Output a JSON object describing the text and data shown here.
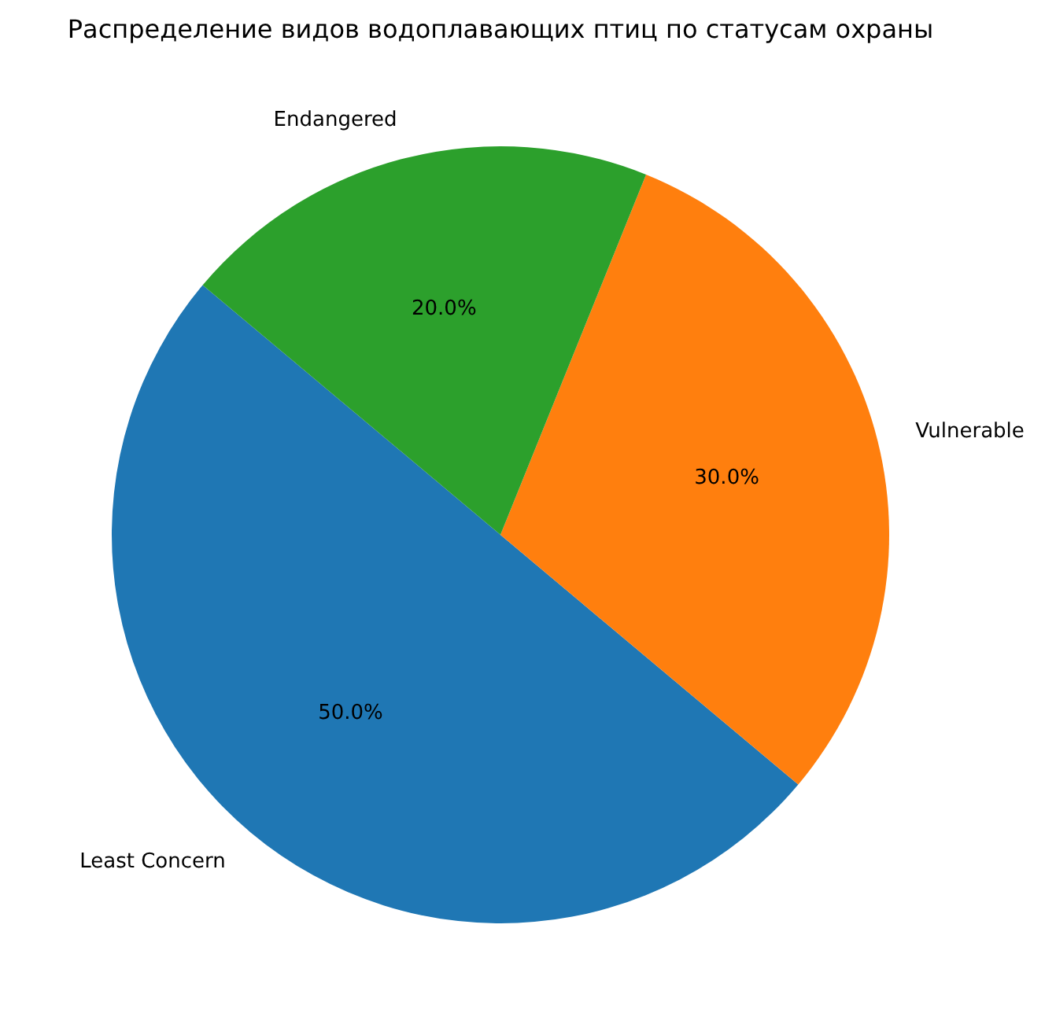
{
  "chart_data": {
    "type": "pie",
    "title": "Распределение видов водоплавающих птиц по статусам охраны",
    "categories": [
      "Least Concern",
      "Vulnerable",
      "Endangered"
    ],
    "values": [
      50,
      30,
      20
    ],
    "colors": [
      "#1f77b4",
      "#ff7f0e",
      "#2ca02c"
    ],
    "value_labels": [
      "50.0%",
      "30.0%",
      "20.0%"
    ]
  }
}
